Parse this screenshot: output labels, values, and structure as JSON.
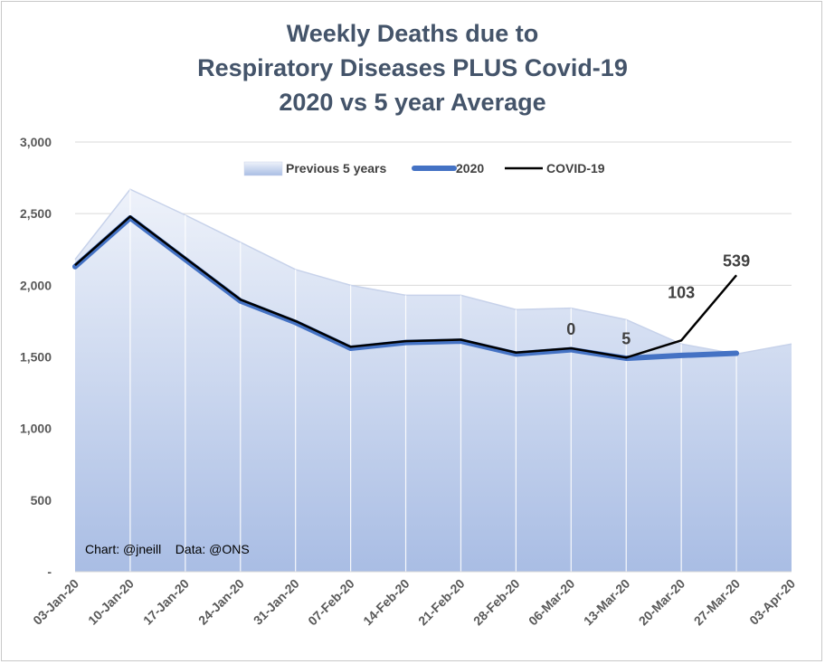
{
  "chart_data": {
    "type": "line",
    "title_lines": [
      "Weekly Deaths due to",
      "Respiratory Diseases PLUS Covid-19",
      "2020 vs 5 year Average"
    ],
    "categories": [
      "03-Jan-20",
      "10-Jan-20",
      "17-Jan-20",
      "24-Jan-20",
      "31-Jan-20",
      "07-Feb-20",
      "14-Feb-20",
      "21-Feb-20",
      "28-Feb-20",
      "06-Mar-20",
      "13-Mar-20",
      "20-Mar-20",
      "27-Mar-20",
      "03-Apr-20"
    ],
    "ylim": [
      0,
      3000
    ],
    "yticks": [
      0,
      500,
      1000,
      1500,
      2000,
      2500,
      3000
    ],
    "ytick_labels": [
      "-",
      "500",
      "1,000",
      "1,500",
      "2,000",
      "2,500",
      "3,000"
    ],
    "series": [
      {
        "name": "Previous 5 years",
        "kind": "area",
        "color": "#b4c7e7",
        "values": [
          2180,
          2670,
          2490,
          2300,
          2110,
          2000,
          1930,
          1930,
          1830,
          1840,
          1760,
          1590,
          1520,
          1590
        ]
      },
      {
        "name": "2020",
        "kind": "line",
        "color": "#4472c4",
        "values": [
          2130,
          2470,
          2180,
          1890,
          1740,
          1560,
          1600,
          1610,
          1520,
          1550,
          1490,
          1510,
          1525,
          null
        ]
      },
      {
        "name": "COVID-19",
        "kind": "line",
        "color": "#000000",
        "values": [
          2140,
          2480,
          2190,
          1900,
          1750,
          1570,
          1610,
          1620,
          1530,
          1560,
          1495,
          1615,
          2070,
          null
        ]
      }
    ],
    "data_labels": [
      {
        "category_index": 9,
        "text": "0"
      },
      {
        "category_index": 10,
        "text": "5"
      },
      {
        "category_index": 11,
        "text": "103"
      },
      {
        "category_index": 12,
        "text": "539"
      }
    ],
    "legend_position": "top-center",
    "credit": "Chart: @jneill    Data: @ONS",
    "grid": true
  }
}
